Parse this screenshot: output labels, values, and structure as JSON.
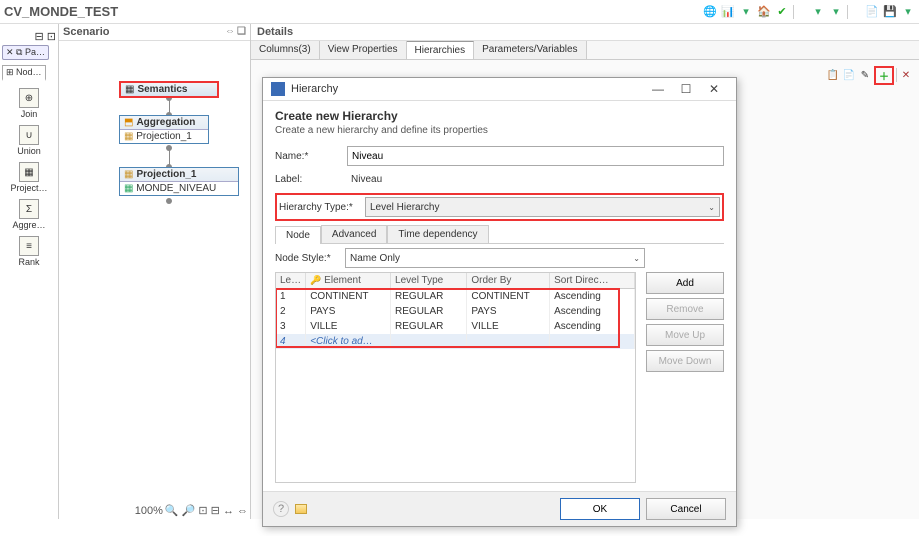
{
  "header": {
    "title": "CV_MONDE_TEST"
  },
  "top_icons": {
    "globe": "🌐",
    "chart": "📊",
    "home": "🏠",
    "ok": "✔",
    "sep": "|",
    "filter": "▾",
    "doc": "📄",
    "save": "💾",
    "menu": "▤"
  },
  "scenario": {
    "title": "Scenario",
    "hdr_icons": {
      "collapse": "⇔",
      "min": "❏"
    },
    "pa_tab": "✕ ⧉ Pa…",
    "nod_tab": "⊞ Nod…",
    "side_items": [
      {
        "icon": "⊕",
        "label": "Join"
      },
      {
        "icon": "∪",
        "label": "Union"
      },
      {
        "icon": "▦",
        "label": "Project…"
      },
      {
        "icon": "Σ",
        "label": "Aggre…"
      },
      {
        "icon": "≡",
        "label": "Rank"
      }
    ],
    "nodes": {
      "semantics": {
        "title": "Semantics",
        "icon": "▦"
      },
      "aggregation": {
        "title": "Aggregation",
        "body": "Projection_1",
        "icon": "⬒",
        "body_icon": "▦"
      },
      "projection1": {
        "title": "Projection_1",
        "body": "MONDE_NIVEAU",
        "icon": "▦",
        "body_icon": "▦"
      }
    },
    "zoom": {
      "pct": "100%",
      "icons": "🔍 🔎 ⊡ ⊟ ↔ ⇔"
    }
  },
  "details": {
    "title": "Details",
    "tabs": [
      "Columns(3)",
      "View Properties",
      "Hierarchies",
      "Parameters/Variables"
    ],
    "active_tab": 2,
    "toolbar": {
      "i1": "📋",
      "i2": "📄",
      "i3": "✎",
      "plus": "＋",
      "del": "✕"
    }
  },
  "dialog": {
    "window_title": "Hierarchy",
    "win_min": "—",
    "win_max": "☐",
    "win_close": "✕",
    "heading": "Create new Hierarchy",
    "subheading": "Create a new hierarchy and define its properties",
    "name_label": "Name:*",
    "name_value": "Niveau",
    "label_label": "Label:",
    "label_value": "Niveau",
    "htype_label": "Hierarchy Type:*",
    "htype_value": "Level Hierarchy",
    "sub_tabs": [
      "Node",
      "Advanced",
      "Time dependency"
    ],
    "active_sub": 0,
    "node_style_label": "Node Style:*",
    "node_style_value": "Name Only",
    "grid": {
      "columns": [
        "Le…",
        "Element",
        "Level Type",
        "Order By",
        "Sort Direc…"
      ],
      "rows": [
        [
          "1",
          "CONTINENT",
          "REGULAR",
          "CONTINENT",
          "Ascending"
        ],
        [
          "2",
          "PAYS",
          "REGULAR",
          "PAYS",
          "Ascending"
        ],
        [
          "3",
          "VILLE",
          "REGULAR",
          "VILLE",
          "Ascending"
        ]
      ],
      "new_row": [
        "4",
        "<Click to ad…",
        "",
        "",
        ""
      ],
      "key_icon": "🔑"
    },
    "buttons": {
      "add": "Add",
      "remove": "Remove",
      "up": "Move Up",
      "down": "Move Down"
    },
    "footer": {
      "help": "?",
      "ok": "OK",
      "cancel": "Cancel"
    }
  }
}
